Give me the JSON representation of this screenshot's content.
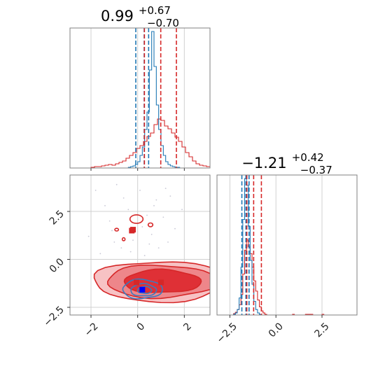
{
  "chart_data": {
    "type": "corner",
    "grid": true,
    "colors": {
      "blue": "#1f77b4",
      "red": "#d62728",
      "frame": "#808080",
      "grid": "#d0d0d0"
    },
    "panels": {
      "hist1": {
        "title_main": "0.99",
        "title_sup": "+0.67",
        "title_sub": "−0.70",
        "xlim": [
          -2.9,
          3.1
        ],
        "blue_quantiles": [
          -0.08,
          0.28,
          0.47
        ],
        "red_quantiles": [
          0.29,
          0.99,
          1.66
        ],
        "blue_hist": {
          "x0": -0.6,
          "dx": 0.1,
          "counts": [
            0,
            0,
            1,
            2,
            3,
            5,
            9,
            18,
            30,
            55,
            80,
            140,
            195,
            145,
            90,
            55,
            32,
            18,
            9,
            5,
            3,
            2,
            1,
            1,
            0,
            0
          ]
        },
        "red_hist": {
          "x0": -2.0,
          "dx": 0.15,
          "counts": [
            1,
            2,
            2,
            3,
            4,
            5,
            4,
            6,
            8,
            10,
            14,
            18,
            22,
            28,
            32,
            38,
            45,
            50,
            62,
            70,
            68,
            60,
            56,
            50,
            44,
            38,
            30,
            22,
            16,
            10,
            6,
            4,
            3,
            2,
            1,
            1,
            0,
            0
          ]
        }
      },
      "hist2": {
        "title_main": "−1.21",
        "title_sup": "+0.42",
        "title_sub": "−0.37",
        "xlim": [
          -3.2,
          4.4
        ],
        "ticks": [
          -2.5,
          0.0,
          2.5
        ],
        "tick_labels": [
          "−2.5",
          "0.0",
          "2.5"
        ],
        "blue_quantiles": [
          -1.85,
          -1.63,
          -1.46
        ],
        "red_quantiles": [
          -1.58,
          -1.21,
          -0.79
        ],
        "blue_hist": {
          "x0": -2.4,
          "dx": 0.1,
          "counts": [
            0,
            1,
            3,
            8,
            25,
            70,
            140,
            200,
            190,
            130,
            80,
            45,
            20,
            8,
            3,
            1,
            0
          ]
        },
        "red_hist": {
          "x0": -2.4,
          "dx": 0.1,
          "counts": [
            0,
            2,
            4,
            8,
            15,
            30,
            60,
            95,
            110,
            100,
            90,
            70,
            50,
            35,
            22,
            12,
            6,
            3,
            1,
            0,
            0,
            0,
            0,
            0,
            0,
            0,
            0,
            0,
            0,
            0,
            0,
            0,
            0,
            1,
            0,
            0,
            0,
            0,
            0,
            0,
            1,
            1,
            1,
            1,
            0,
            0,
            0,
            0,
            0,
            1,
            0,
            0,
            0,
            0,
            0,
            0,
            0,
            0,
            0
          ]
        }
      },
      "scatter": {
        "xlim": [
          -2.9,
          3.1
        ],
        "ylim": [
          -2.9,
          4.4
        ],
        "xticks": [
          -2,
          0,
          2
        ],
        "xtick_labels": [
          "−2",
          "0",
          "2"
        ],
        "yticks": [
          -2.5,
          0.0,
          2.5
        ],
        "ytick_labels": [
          "−2.5",
          "0.0",
          "2.5"
        ],
        "red_markers": [
          [
            -0.25,
            1.5
          ],
          [
            -0.2,
            1.55
          ],
          [
            -0.05,
            -1.2
          ],
          [
            1.0,
            -1.2
          ]
        ],
        "blue_markers": [
          [
            0.2,
            -1.58
          ]
        ],
        "red_levels": [
          {
            "cx": 1.0,
            "cy": -1.15,
            "rx": 2.9,
            "ry": 1.05,
            "fill": "#f7c2c4"
          },
          {
            "cx": 1.0,
            "cy": -1.15,
            "rx": 2.35,
            "ry": 0.85,
            "fill": "#ee868a"
          },
          {
            "cx": 1.05,
            "cy": -1.15,
            "rx": 1.65,
            "ry": 0.6,
            "fill": "#df3036"
          }
        ],
        "red_islands": [
          {
            "cx": -0.05,
            "cy": 2.1,
            "rx": 0.28,
            "ry": 0.22
          },
          {
            "cx": 0.55,
            "cy": 1.8,
            "rx": 0.1,
            "ry": 0.1
          },
          {
            "cx": -0.9,
            "cy": 1.55,
            "rx": 0.08,
            "ry": 0.07
          },
          {
            "cx": -0.6,
            "cy": 1.05,
            "rx": 0.06,
            "ry": 0.08
          }
        ],
        "blue_levels": [
          {
            "cx": 0.2,
            "cy": -1.55,
            "rx": 0.85,
            "ry": 0.5
          },
          {
            "cx": 0.25,
            "cy": -1.6,
            "rx": 0.55,
            "ry": 0.32
          },
          {
            "cx": 0.3,
            "cy": -1.6,
            "rx": 0.3,
            "ry": 0.18
          }
        ],
        "scatter_points": [
          [
            -2.1,
            1.2
          ],
          [
            -1.6,
            0.3
          ],
          [
            -1.2,
            2.0
          ],
          [
            -0.9,
            3.9
          ],
          [
            -0.7,
            0.6
          ],
          [
            -0.4,
            2.6
          ],
          [
            -0.2,
            1.0
          ],
          [
            0.1,
            3.6
          ],
          [
            0.3,
            0.2
          ],
          [
            0.4,
            2.3
          ],
          [
            0.6,
            1.3
          ],
          [
            0.8,
            3.1
          ],
          [
            0.9,
            0.6
          ],
          [
            1.1,
            2.2
          ],
          [
            1.3,
            0.9
          ],
          [
            1.4,
            3.3
          ],
          [
            1.6,
            1.6
          ],
          [
            -1.4,
            2.8
          ],
          [
            -0.6,
            3.2
          ],
          [
            0.2,
            1.7
          ],
          [
            -1.0,
            0.9
          ],
          [
            1.9,
            2.6
          ],
          [
            -1.8,
            3.6
          ],
          [
            0.7,
            2.8
          ],
          [
            -0.3,
            0.4
          ],
          [
            1.2,
            3.7
          ],
          [
            -1.1,
            1.5
          ],
          [
            0.5,
            0.8
          ]
        ]
      }
    }
  }
}
